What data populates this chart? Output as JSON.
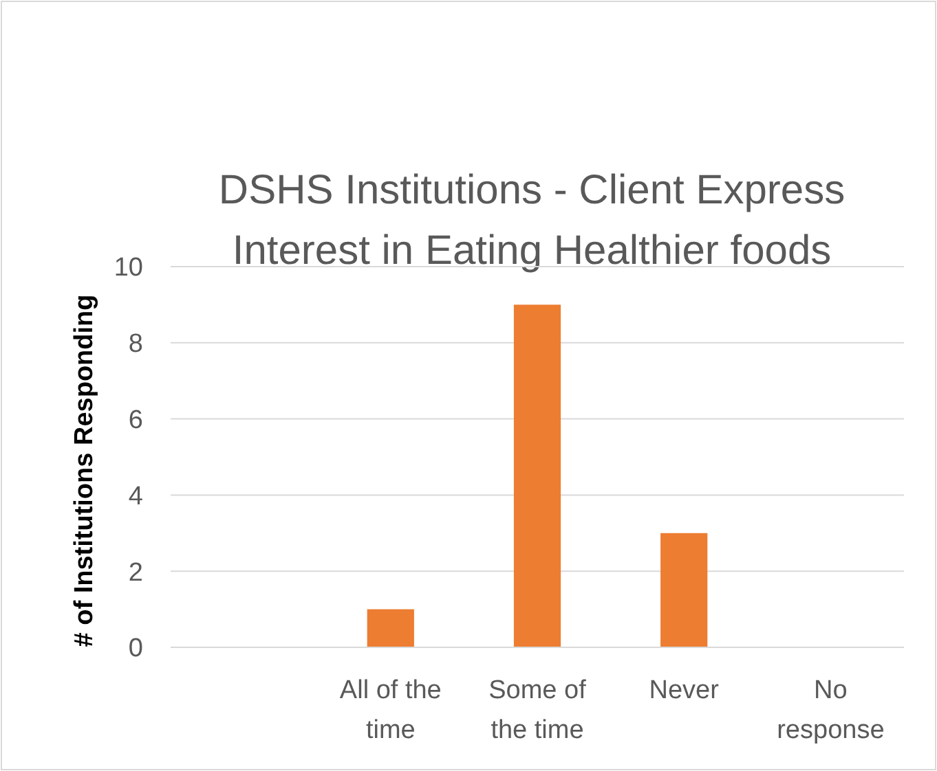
{
  "chart_data": {
    "type": "bar",
    "title": "DSHS Institutions - Client Express Interest in Eating Healthier foods",
    "ylabel": "# of Institutions Responding",
    "categories": [
      null,
      "All of the time",
      "Some of the time",
      "Never",
      "No response"
    ],
    "values": [
      null,
      1,
      9,
      3,
      null
    ],
    "color": "#ed7d31",
    "ylim": [
      0,
      10
    ],
    "yticks": [
      0,
      2,
      4,
      6,
      8,
      10
    ],
    "grid": "y"
  }
}
